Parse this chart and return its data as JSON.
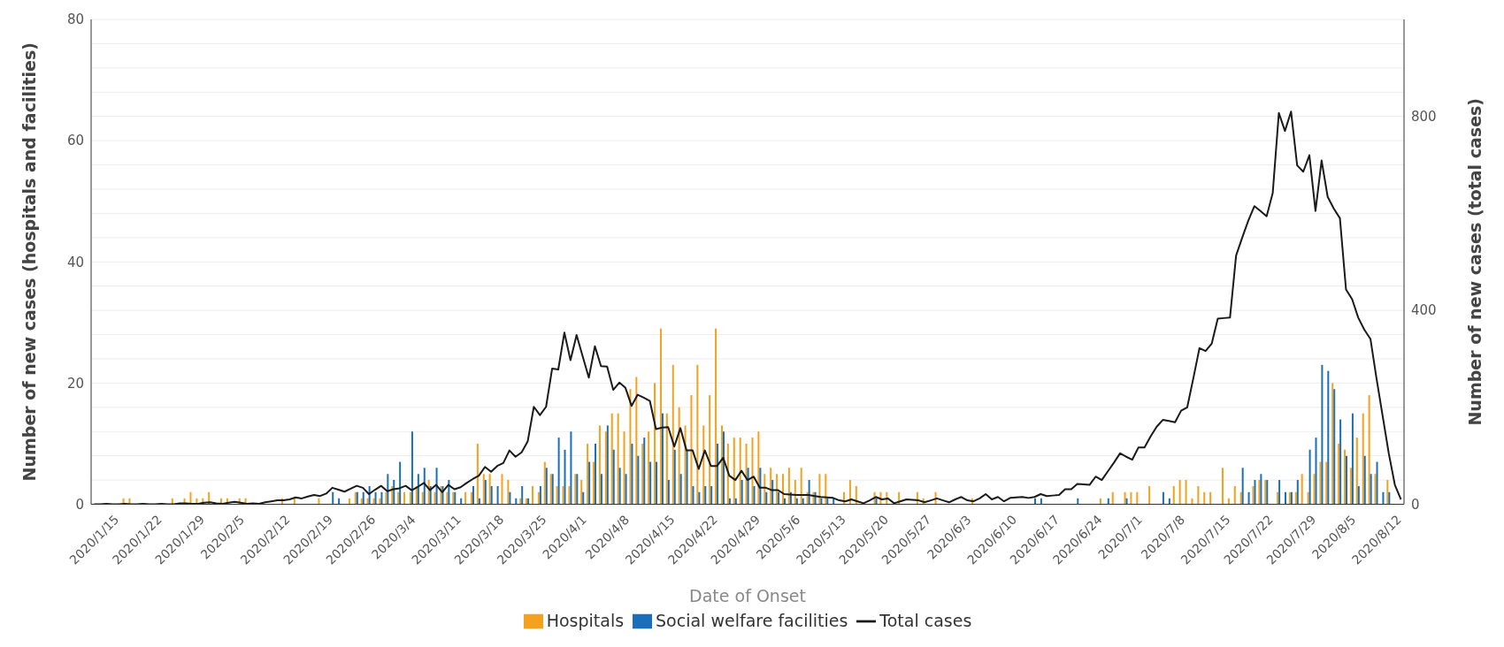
{
  "chart_data": {
    "type": "bar",
    "xlabel": "Date of Onset",
    "ylabel": "Number of new cases (hospitals and facilities)",
    "y2label": "Number of new cases (total cases)",
    "categories": [
      "2020/1/15",
      null,
      null,
      null,
      null,
      null,
      null,
      "2020/1/22",
      null,
      null,
      null,
      null,
      null,
      null,
      "2020/1/29",
      null,
      null,
      null,
      null,
      null,
      null,
      "2020/2/5",
      null,
      null,
      null,
      null,
      null,
      null,
      "2020/2/12",
      null,
      null,
      null,
      null,
      null,
      null,
      "2020/2/19",
      null,
      null,
      null,
      null,
      null,
      null,
      "2020/2/26",
      null,
      null,
      null,
      null,
      null,
      null,
      "2020/3/4",
      null,
      null,
      null,
      null,
      null,
      null,
      "2020/3/11",
      null,
      null,
      null,
      null,
      null,
      null,
      "2020/3/18",
      null,
      null,
      null,
      null,
      null,
      null,
      "2020/3/25",
      null,
      null,
      null,
      null,
      null,
      null,
      "2020/4/1",
      null,
      null,
      null,
      null,
      null,
      null,
      "2020/4/8",
      null,
      null,
      null,
      null,
      null,
      null,
      "2020/4/15",
      null,
      null,
      null,
      null,
      null,
      null,
      "2020/4/22",
      null,
      null,
      null,
      null,
      null,
      null,
      "2020/4/29",
      null,
      null,
      null,
      null,
      null,
      null,
      "2020/5/6",
      null,
      null,
      null,
      null,
      null,
      null,
      "2020/5/13",
      null,
      null,
      null,
      null,
      null,
      null,
      "2020/5/20",
      null,
      null,
      null,
      null,
      null,
      null,
      "2020/5/27",
      null,
      null,
      null,
      null,
      null,
      null,
      "2020/6/3",
      null,
      null,
      null,
      null,
      null,
      null,
      "2020/6/10",
      null,
      null,
      null,
      null,
      null,
      null,
      "2020/6/17",
      null,
      null,
      null,
      null,
      null,
      null,
      "2020/6/24",
      null,
      null,
      null,
      null,
      null,
      null,
      "2020/7/1",
      null,
      null,
      null,
      null,
      null,
      null,
      "2020/7/8",
      null,
      null,
      null,
      null,
      null,
      null,
      "2020/7/15",
      null,
      null,
      null,
      null,
      null,
      null,
      "2020/7/22",
      null,
      null,
      null,
      null,
      null,
      null,
      "2020/7/29",
      null,
      null,
      null,
      null,
      null,
      null,
      "2020/8/5",
      null,
      null,
      null,
      null,
      null,
      null,
      "2020/8/12",
      null,
      null,
      null,
      null
    ],
    "series": [
      {
        "name": "Hospitals",
        "color": "#f4a11d",
        "values": [
          0,
          0,
          0,
          0,
          0,
          1,
          1,
          0,
          0,
          0,
          0,
          0,
          0,
          1,
          0,
          1,
          2,
          1,
          1,
          2,
          0,
          1,
          1,
          0,
          1,
          1,
          0,
          0,
          0,
          0,
          0,
          1,
          0,
          1,
          0,
          0,
          0,
          1,
          0,
          0,
          0,
          0,
          1,
          2,
          1,
          1,
          1,
          1,
          2,
          3,
          2,
          2,
          2,
          3,
          2,
          4,
          2,
          3,
          2,
          2,
          0,
          2,
          2,
          10,
          5,
          5,
          0,
          5,
          4,
          0,
          1,
          1,
          3,
          2,
          7,
          5,
          3,
          3,
          3,
          5,
          4,
          10,
          7,
          13,
          12,
          15,
          15,
          12,
          19,
          21,
          10,
          12,
          20,
          29,
          15,
          23,
          16,
          13,
          18,
          23,
          13,
          18,
          29,
          13,
          10,
          11,
          11,
          10,
          11,
          12,
          5,
          6,
          5,
          5,
          6,
          4,
          6,
          2,
          2,
          5,
          5,
          0,
          0,
          2,
          4,
          3,
          0,
          0,
          2,
          2,
          2,
          0,
          2,
          0,
          0,
          2,
          1,
          0,
          2,
          0,
          0,
          0,
          0,
          0,
          1,
          0,
          0,
          0,
          0,
          0,
          0,
          0,
          0,
          0,
          0,
          0,
          0,
          0,
          0,
          0,
          0,
          0,
          0,
          0,
          0,
          1,
          0,
          2,
          0,
          2,
          2,
          2,
          0,
          3,
          0,
          0,
          0,
          3,
          4,
          4,
          1,
          3,
          2,
          2,
          0,
          6,
          1,
          3,
          2,
          0,
          3,
          4,
          4,
          0,
          2,
          0,
          2,
          2,
          5,
          2,
          5,
          7,
          7,
          20,
          10,
          9,
          6,
          11,
          15,
          18,
          5,
          0,
          4,
          0,
          0
        ]
      },
      {
        "name": "Social welfare facilities",
        "color": "#1b6fba",
        "values": [
          0,
          0,
          0,
          0,
          0,
          0,
          0,
          0,
          0,
          0,
          0,
          0,
          0,
          0,
          0,
          0,
          0,
          0,
          0,
          0,
          0,
          0,
          0,
          0,
          0,
          0,
          0,
          0,
          0,
          0,
          0,
          0,
          0,
          0,
          0,
          0,
          0,
          0,
          0,
          2,
          1,
          0,
          0,
          2,
          2,
          3,
          2,
          2,
          5,
          4,
          7,
          0,
          12,
          5,
          6,
          3,
          6,
          3,
          4,
          2,
          1,
          0,
          3,
          1,
          4,
          3,
          3,
          0,
          2,
          1,
          3,
          1,
          0,
          3,
          6,
          5,
          11,
          9,
          12,
          5,
          2,
          7,
          10,
          5,
          13,
          9,
          6,
          5,
          10,
          8,
          11,
          7,
          7,
          15,
          4,
          9,
          5,
          9,
          3,
          2,
          3,
          3,
          10,
          12,
          1,
          1,
          4,
          6,
          3,
          6,
          2,
          4,
          2,
          1,
          2,
          1,
          1,
          4,
          2,
          1,
          1,
          1,
          0,
          0,
          0,
          0,
          0,
          0,
          1,
          0,
          0,
          0,
          0,
          0,
          0,
          0,
          0,
          0,
          0,
          0,
          0,
          0,
          0,
          0,
          0,
          0,
          0,
          0,
          0,
          0,
          0,
          0,
          0,
          0,
          1,
          1,
          0,
          0,
          0,
          0,
          0,
          1,
          0,
          0,
          0,
          0,
          1,
          0,
          0,
          1,
          0,
          0,
          0,
          0,
          0,
          2,
          1,
          0,
          0,
          0,
          0,
          0,
          0,
          0,
          0,
          0,
          0,
          0,
          6,
          2,
          4,
          5,
          4,
          0,
          4,
          2,
          2,
          4,
          0,
          9,
          11,
          23,
          22,
          19,
          14,
          8,
          15,
          3,
          8,
          5,
          7,
          2,
          2,
          0,
          0
        ]
      },
      {
        "name": "Total cases",
        "type": "line",
        "axis": "y2",
        "color": "#1a1a1a",
        "values": [
          0,
          0,
          1,
          0,
          0,
          1,
          0,
          0,
          1,
          0,
          0,
          1,
          0,
          0,
          2,
          2,
          1,
          1,
          3,
          4,
          2,
          1,
          3,
          5,
          3,
          1,
          2,
          1,
          4,
          6,
          8,
          8,
          10,
          14,
          12,
          16,
          19,
          17,
          22,
          34,
          30,
          26,
          32,
          38,
          34,
          21,
          30,
          38,
          27,
          31,
          33,
          38,
          29,
          36,
          44,
          29,
          40,
          25,
          40,
          31,
          35,
          44,
          52,
          59,
          77,
          67,
          79,
          85,
          111,
          98,
          107,
          130,
          201,
          184,
          201,
          280,
          278,
          354,
          297,
          349,
          305,
          261,
          326,
          285,
          284,
          236,
          251,
          240,
          203,
          226,
          220,
          213,
          155,
          158,
          159,
          119,
          157,
          111,
          111,
          73,
          111,
          79,
          79,
          96,
          59,
          50,
          69,
          50,
          57,
          34,
          34,
          29,
          29,
          21,
          20,
          19,
          19,
          19,
          17,
          15,
          14,
          13,
          8,
          6,
          10,
          6,
          2,
          8,
          15,
          10,
          12,
          2,
          6,
          10,
          9,
          8,
          4,
          8,
          12,
          8,
          4,
          10,
          15,
          8,
          6,
          12,
          21,
          10,
          15,
          6,
          13,
          14,
          15,
          13,
          15,
          21,
          17,
          18,
          19,
          31,
          31,
          42,
          41,
          40,
          57,
          50,
          68,
          86,
          105,
          98,
          92,
          117,
          117,
          140,
          160,
          174,
          172,
          169,
          193,
          200,
          260,
          322,
          316,
          331,
          383,
          384,
          385,
          513,
          550,
          585,
          615,
          605,
          594,
          642,
          807,
          770,
          810,
          699,
          686,
          720,
          605,
          709,
          634,
          610,
          590,
          443,
          423,
          385,
          360,
          341,
          259,
          182,
          105,
          40,
          10
        ]
      }
    ],
    "ylim": [
      0,
      80
    ],
    "yticks": [
      0,
      {
        "value": 4,
        "label": null
      },
      {
        "value": 8,
        "label": null
      },
      {
        "value": 12,
        "label": null
      },
      {
        "value": 16,
        "label": null
      },
      20,
      {
        "value": 24,
        "label": null
      },
      {
        "value": 28,
        "label": null
      },
      {
        "value": 32,
        "label": null
      },
      {
        "value": 36,
        "label": null
      },
      40,
      {
        "value": 44,
        "label": null
      },
      {
        "value": 48,
        "label": null
      },
      {
        "value": 52,
        "label": null
      },
      {
        "value": 56,
        "label": null
      },
      60,
      {
        "value": 64,
        "label": null
      },
      {
        "value": 68,
        "label": null
      },
      {
        "value": 72,
        "label": null
      },
      {
        "value": 76,
        "label": null
      },
      80
    ],
    "y2lim": [
      0,
      1000
    ],
    "y2ticks": [
      0,
      400,
      800
    ],
    "grid": "y",
    "legend": "bottom"
  }
}
